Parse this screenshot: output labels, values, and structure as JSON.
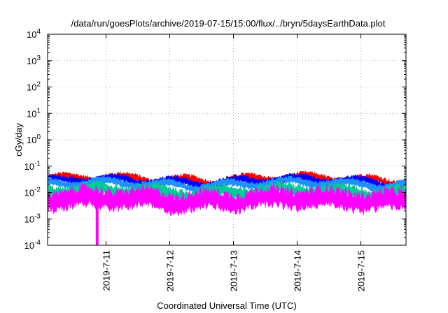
{
  "chart_data": {
    "type": "line",
    "title": "/data/run/goesPlots/archive/2019-07-15/15:00/flux/../bryn/5daysEarthData.plot",
    "xlabel": "Coordinated Universal Time (UTC)",
    "ylabel": "cGy/day",
    "yscale": "log",
    "ylim": [
      0.0001,
      10000
    ],
    "y_ticks": [
      {
        "value": 0.0001,
        "base": "10",
        "exp": "-4"
      },
      {
        "value": 0.001,
        "base": "10",
        "exp": "-3"
      },
      {
        "value": 0.01,
        "base": "10",
        "exp": "-2"
      },
      {
        "value": 0.1,
        "base": "10",
        "exp": "-1"
      },
      {
        "value": 1,
        "base": "10",
        "exp": "0"
      },
      {
        "value": 10,
        "base": "10",
        "exp": "1"
      },
      {
        "value": 100,
        "base": "10",
        "exp": "2"
      },
      {
        "value": 1000,
        "base": "10",
        "exp": "3"
      },
      {
        "value": 10000,
        "base": "10",
        "exp": "4"
      }
    ],
    "xlim": [
      "2019-07-10 02:00",
      "2019-07-15 17:00"
    ],
    "x_ticks": [
      "2019-7-11",
      "2019-7-12",
      "2019-7-13",
      "2019-7-14",
      "2019-7-15"
    ],
    "grid": true,
    "series": [
      {
        "color": "#ff0000",
        "level": 0.032,
        "spread": 0.13
      },
      {
        "color": "#0000ff",
        "level": 0.028,
        "spread": 0.12
      },
      {
        "color": "#1e90ff",
        "level": 0.022,
        "spread": 0.12
      },
      {
        "color": "#00cc99",
        "level": 0.011,
        "spread": 0.22
      },
      {
        "color": "#ff00ff",
        "level": 0.0055,
        "spread": 0.35
      }
    ],
    "anomaly": {
      "x": "2019-07-10 20:40",
      "y_min": 0.0001
    }
  }
}
